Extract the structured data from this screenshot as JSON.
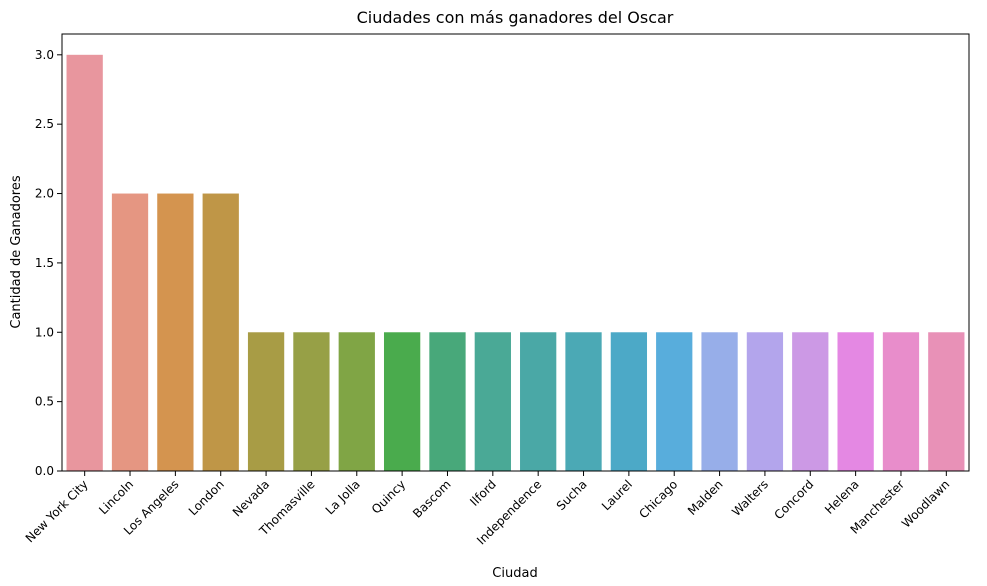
{
  "chart_data": {
    "type": "bar",
    "title": "Ciudades con más ganadores del Oscar",
    "xlabel": "Ciudad",
    "ylabel": "Cantidad de Ganadores",
    "categories": [
      "New York City",
      "Lincoln",
      "Los Angeles",
      "London",
      "Nevada",
      "Thomasville",
      "La Jolla",
      "Quincy",
      "Bascom",
      "Ilford",
      "Independence",
      "Sucha",
      "Laurel",
      "Chicago",
      "Malden",
      "Walters",
      "Concord",
      "Helena",
      "Manchester",
      "Woodlawn"
    ],
    "values": [
      3,
      2,
      2,
      2,
      1,
      1,
      1,
      1,
      1,
      1,
      1,
      1,
      1,
      1,
      1,
      1,
      1,
      1,
      1,
      1
    ],
    "colors": [
      "#e8969e",
      "#e59682",
      "#d4944f",
      "#bf9647",
      "#a89c45",
      "#97a046",
      "#80a545",
      "#4aab4d",
      "#48a87a",
      "#4aa996",
      "#4aa8a6",
      "#4ba9b5",
      "#4ca9c7",
      "#58addc",
      "#97aee9",
      "#b3a5ec",
      "#cc99e5",
      "#e488e3",
      "#e88dcb",
      "#e891b7"
    ],
    "ylim": [
      0,
      3.15
    ],
    "yticks": [
      "0.0",
      "0.5",
      "1.0",
      "1.5",
      "2.0",
      "2.5",
      "3.0"
    ],
    "grid": false,
    "legend": "none"
  }
}
